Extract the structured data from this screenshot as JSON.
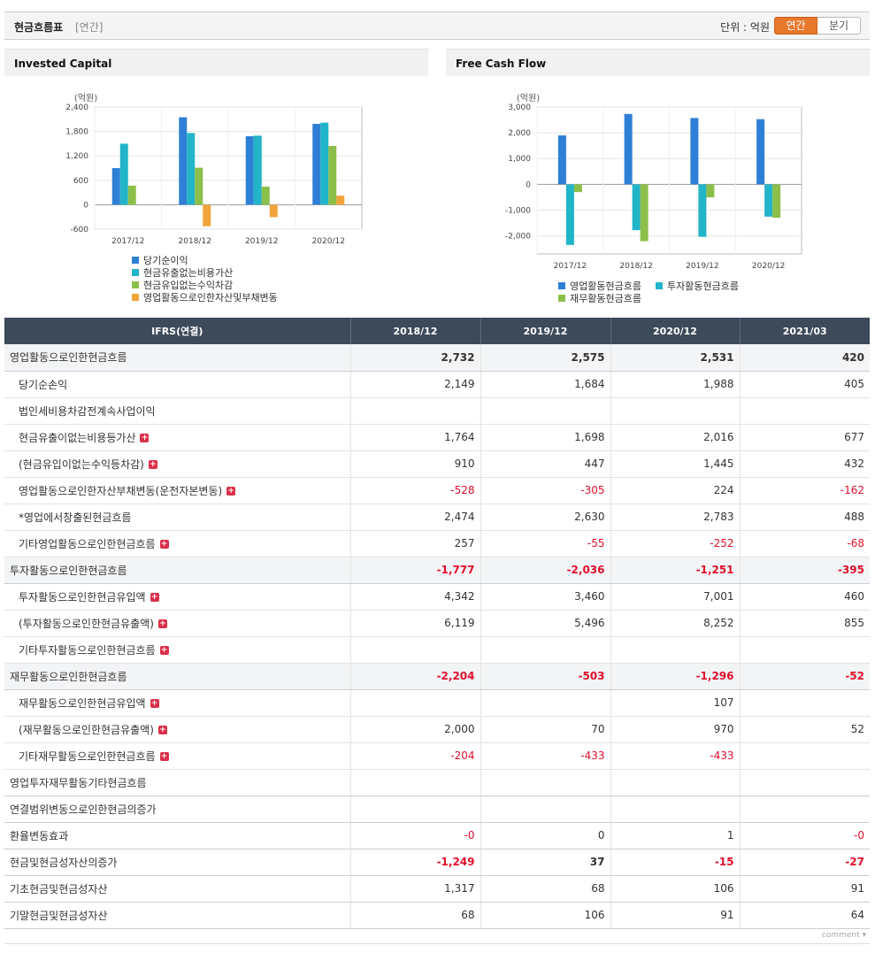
{
  "header": {
    "title": "현금흐름표",
    "subtitle": "[연간]",
    "unit": "단위 : 억원",
    "tab_annual": "연간",
    "tab_quarter": "분기"
  },
  "colors": {
    "blue": "#2e7fd6",
    "teal": "#22b4c8",
    "green": "#8cbf4a",
    "orange": "#f0a43a",
    "negative": "#e0102a"
  },
  "chart_data": [
    {
      "type": "bar",
      "title": "Invested Capital",
      "ylabel": "(억원)",
      "categories": [
        "2017/12",
        "2018/12",
        "2019/12",
        "2020/12"
      ],
      "ylim": [
        -600,
        2400
      ],
      "yticks": [
        "2,400",
        "1,800",
        "1,200",
        "600",
        "0",
        "-600"
      ],
      "ytick_values": [
        2400,
        1800,
        1200,
        600,
        0,
        -600
      ],
      "series": [
        {
          "name": "당기순이익",
          "color": "#2e7fd6",
          "values": [
            900,
            2149,
            1684,
            1988
          ]
        },
        {
          "name": "현금유출없는비용가산",
          "color": "#22b4c8",
          "values": [
            1500,
            1764,
            1698,
            2016
          ]
        },
        {
          "name": "현금유입없는수익차감",
          "color": "#8cbf4a",
          "values": [
            470,
            910,
            447,
            1445
          ]
        },
        {
          "name": "영업활동으로인한자산및부채변동",
          "color": "#f0a43a",
          "values": [
            0,
            -528,
            -305,
            224
          ]
        }
      ]
    },
    {
      "type": "bar",
      "title": "Free Cash Flow",
      "ylabel": "(억원)",
      "categories": [
        "2017/12",
        "2018/12",
        "2019/12",
        "2020/12"
      ],
      "ylim": [
        -2700,
        3000
      ],
      "yticks": [
        "3,000",
        "2,000",
        "1,000",
        "0",
        "-1,000",
        "-2,000"
      ],
      "ytick_values": [
        3000,
        2000,
        1000,
        0,
        -1000,
        -2000
      ],
      "series": [
        {
          "name": "영업활동현금흐름",
          "color": "#2e7fd6",
          "values": [
            1900,
            2732,
            2575,
            2531
          ]
        },
        {
          "name": "투자활동현금흐름",
          "color": "#22b4c8",
          "values": [
            -2350,
            -1777,
            -2036,
            -1251
          ]
        },
        {
          "name": "재무활동현금흐름",
          "color": "#8cbf4a",
          "values": [
            -300,
            -2204,
            -503,
            -1296
          ]
        }
      ]
    }
  ],
  "table": {
    "headers": [
      "IFRS(연결)",
      "2018/12",
      "2019/12",
      "2020/12",
      "2021/03"
    ],
    "rows": [
      {
        "label": "영업활동으로인한현금흐름",
        "kind": "main",
        "plus": false,
        "values": [
          "2,732",
          "2,575",
          "2,531",
          "420"
        ]
      },
      {
        "label": "당기순손익",
        "kind": "sub",
        "plus": false,
        "values": [
          "2,149",
          "1,684",
          "1,988",
          "405"
        ]
      },
      {
        "label": "법인세비용차감전계속사업이익",
        "kind": "sub",
        "plus": false,
        "values": [
          "",
          "",
          "",
          ""
        ]
      },
      {
        "label": "현금유출이없는비용등가산",
        "kind": "sub",
        "plus": true,
        "values": [
          "1,764",
          "1,698",
          "2,016",
          "677"
        ]
      },
      {
        "label": "(현금유입이없는수익등차감)",
        "kind": "sub",
        "plus": true,
        "values": [
          "910",
          "447",
          "1,445",
          "432"
        ]
      },
      {
        "label": "영업활동으로인한자산부채변동(운전자본변동)",
        "kind": "sub",
        "plus": true,
        "values": [
          "-528",
          "-305",
          "224",
          "-162"
        ]
      },
      {
        "label": "*영업에서창출된현금흐름",
        "kind": "sub",
        "plus": false,
        "values": [
          "2,474",
          "2,630",
          "2,783",
          "488"
        ]
      },
      {
        "label": "기타영업활동으로인한현금흐름",
        "kind": "sub",
        "plus": true,
        "values": [
          "257",
          "-55",
          "-252",
          "-68"
        ]
      },
      {
        "label": "투자활동으로인한현금흐름",
        "kind": "main",
        "plus": false,
        "values": [
          "-1,777",
          "-2,036",
          "-1,251",
          "-395"
        ]
      },
      {
        "label": "투자활동으로인한현금유입액",
        "kind": "sub",
        "plus": true,
        "values": [
          "4,342",
          "3,460",
          "7,001",
          "460"
        ]
      },
      {
        "label": "(투자활동으로인한현금유출액)",
        "kind": "sub",
        "plus": true,
        "values": [
          "6,119",
          "5,496",
          "8,252",
          "855"
        ]
      },
      {
        "label": "기타투자활동으로인한현금흐름",
        "kind": "sub",
        "plus": true,
        "values": [
          "",
          "",
          "",
          ""
        ]
      },
      {
        "label": "재무활동으로인한현금흐름",
        "kind": "main",
        "plus": false,
        "values": [
          "-2,204",
          "-503",
          "-1,296",
          "-52"
        ]
      },
      {
        "label": "재무활동으로인한현금유입액",
        "kind": "sub",
        "plus": true,
        "values": [
          "",
          "",
          "107",
          ""
        ]
      },
      {
        "label": "(재무활동으로인한현금유출액)",
        "kind": "sub",
        "plus": true,
        "values": [
          "2,000",
          "70",
          "970",
          "52"
        ]
      },
      {
        "label": "기타재무활동으로인한현금흐름",
        "kind": "sub",
        "plus": true,
        "values": [
          "-204",
          "-433",
          "-433",
          ""
        ]
      },
      {
        "label": "영업투자재무활동기타현금흐름",
        "kind": "top",
        "plus": false,
        "values": [
          "",
          "",
          "",
          ""
        ]
      },
      {
        "label": "연결범위변동으로인한현금의증가",
        "kind": "top",
        "plus": false,
        "values": [
          "",
          "",
          "",
          ""
        ]
      },
      {
        "label": "환율변동효과",
        "kind": "top",
        "plus": false,
        "values": [
          "-0",
          "0",
          "1",
          "-0"
        ]
      },
      {
        "label": "현금및현금성자산의증가",
        "kind": "topbold",
        "plus": false,
        "values": [
          "-1,249",
          "37",
          "-15",
          "-27"
        ]
      },
      {
        "label": "기초현금및현금성자산",
        "kind": "top",
        "plus": false,
        "values": [
          "1,317",
          "68",
          "106",
          "91"
        ]
      },
      {
        "label": "기말현금및현금성자산",
        "kind": "top",
        "plus": false,
        "values": [
          "68",
          "106",
          "91",
          "64"
        ]
      }
    ]
  },
  "footer": {
    "comment": "comment ▾"
  }
}
